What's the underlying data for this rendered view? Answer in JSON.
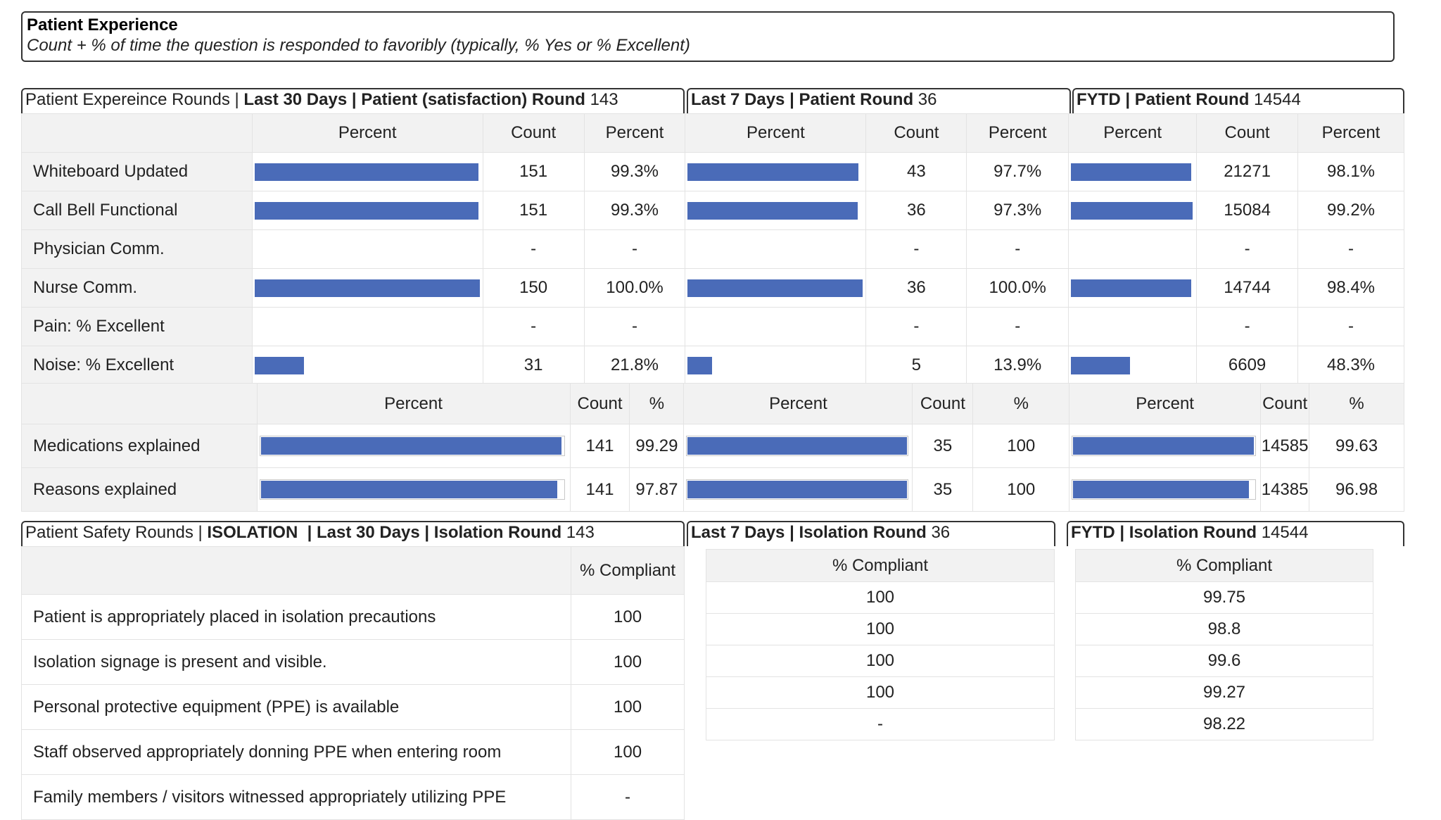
{
  "header": {
    "title": "Patient Experience",
    "subtitle": "Count + % of time the question is responded to favoribly (typically, % Yes or % Excellent)"
  },
  "colors": {
    "bar": "#4a6bb8",
    "grid": "#e3e3e3",
    "header_bg": "#f2f2f2"
  },
  "rounds": {
    "left_prefix": "Patient Expereince Rounds | ",
    "left_bold": "Last 30 Days | Patient (satisfaction) Round",
    "left_count": "143",
    "mid_bold": "Last 7 Days | Patient Round",
    "mid_count": "36",
    "right_bold": "FYTD | Patient Round",
    "right_count": "14544",
    "col_percent": "Percent",
    "col_count": "Count",
    "col_percent2": "Percent",
    "rows": [
      {
        "label": "Whiteboard Updated",
        "p30": {
          "count": "151",
          "pct": "99.3%",
          "fill": 99.3
        },
        "p7": {
          "count": "43",
          "pct": "97.7%",
          "fill": 97.7
        },
        "fytd": {
          "count": "21271",
          "pct": "98.1%",
          "fill": 98.1
        }
      },
      {
        "label": "Call Bell Functional",
        "p30": {
          "count": "151",
          "pct": "99.3%",
          "fill": 99.3
        },
        "p7": {
          "count": "36",
          "pct": "97.3%",
          "fill": 97.3
        },
        "fytd": {
          "count": "15084",
          "pct": "99.2%",
          "fill": 99.2
        }
      },
      {
        "label": "Physician Comm.",
        "p30": {
          "count": "-",
          "pct": "-",
          "fill": 0
        },
        "p7": {
          "count": "-",
          "pct": "-",
          "fill": 0
        },
        "fytd": {
          "count": "-",
          "pct": "-",
          "fill": 0
        }
      },
      {
        "label": "Nurse Comm.",
        "p30": {
          "count": "150",
          "pct": "100.0%",
          "fill": 100
        },
        "p7": {
          "count": "36",
          "pct": "100.0%",
          "fill": 100
        },
        "fytd": {
          "count": "14744",
          "pct": "98.4%",
          "fill": 98.4
        }
      },
      {
        "label": "Pain: % Excellent",
        "p30": {
          "count": "-",
          "pct": "-",
          "fill": 0
        },
        "p7": {
          "count": "-",
          "pct": "-",
          "fill": 0
        },
        "fytd": {
          "count": "-",
          "pct": "-",
          "fill": 0
        }
      },
      {
        "label": "Noise: % Excellent",
        "p30": {
          "count": "31",
          "pct": "21.8%",
          "fill": 21.8
        },
        "p7": {
          "count": "5",
          "pct": "13.9%",
          "fill": 13.9
        },
        "fytd": {
          "count": "6609",
          "pct": "48.3%",
          "fill": 48.3
        }
      }
    ]
  },
  "explained": {
    "col_percent": "Percent",
    "col_count": "Count",
    "col_pct": "%",
    "rows": [
      {
        "label": "Medications explained",
        "p30": {
          "count": "141",
          "pct": "99.29",
          "fill": 99.29
        },
        "p7": {
          "count": "35",
          "pct": "100",
          "fill": 100
        },
        "fytd": {
          "count": "14585",
          "pct": "99.63",
          "fill": 99.63
        }
      },
      {
        "label": "Reasons explained",
        "p30": {
          "count": "141",
          "pct": "97.87",
          "fill": 97.87
        },
        "p7": {
          "count": "35",
          "pct": "100",
          "fill": 100
        },
        "fytd": {
          "count": "14385",
          "pct": "96.98",
          "fill": 96.98
        }
      }
    ]
  },
  "safety": {
    "left_prefix": "Patient Safety Rounds | ",
    "left_bold": "ISOLATION  | Last 30 Days | Isolation Round",
    "left_count": "143",
    "mid_bold": "Last 7 Days | Isolation Round",
    "mid_count": "36",
    "right_bold": "FYTD | Isolation Round",
    "right_count": "14544",
    "col_compliant": "% Compliant",
    "rows": [
      {
        "label": "Patient is appropriately placed in isolation precautions",
        "d30": "100",
        "d7": "100",
        "fytd": "99.75"
      },
      {
        "label": "Isolation signage is present and visible.",
        "d30": "100",
        "d7": "100",
        "fytd": "98.8"
      },
      {
        "label": "Personal protective equipment (PPE) is available",
        "d30": "100",
        "d7": "100",
        "fytd": "99.6"
      },
      {
        "label": "Staff observed appropriately donning PPE when entering room",
        "d30": "100",
        "d7": "100",
        "fytd": "99.27"
      },
      {
        "label": "Family members / visitors witnessed appropriately utilizing PPE",
        "d30": "-",
        "d7": "-",
        "fytd": "98.22"
      }
    ]
  }
}
